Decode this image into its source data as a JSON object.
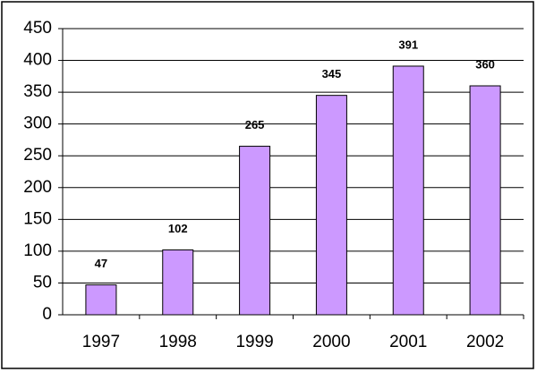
{
  "chart_data": {
    "type": "bar",
    "categories": [
      "1997",
      "1998",
      "1999",
      "2000",
      "2001",
      "2002"
    ],
    "values": [
      47,
      102,
      265,
      345,
      391,
      360
    ],
    "color": "#cc99ff",
    "ylim": [
      0,
      450
    ],
    "yticks": [
      0,
      50,
      100,
      150,
      200,
      250,
      300,
      350,
      400,
      450
    ],
    "grid": true
  }
}
